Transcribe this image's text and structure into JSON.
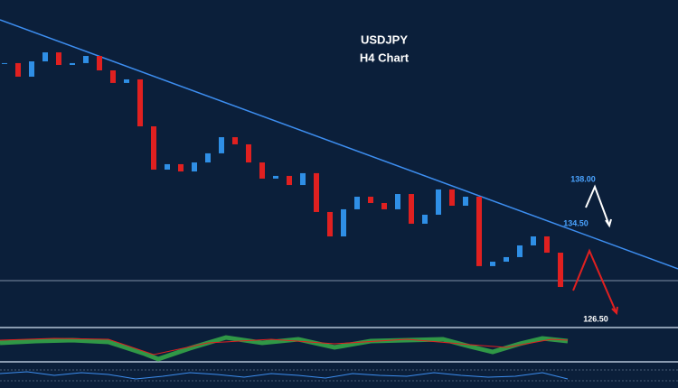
{
  "chart_data": {
    "type": "candlestick",
    "title": "USDJPY",
    "subtitle": "H4 Chart",
    "values": [
      147.38,
      146.28,
      147.52,
      148.25,
      147.23,
      147.38,
      147.96,
      146.79,
      145.77,
      146.06,
      142.25,
      138.74,
      139.18,
      138.59,
      139.32,
      140.06,
      141.37,
      140.79,
      139.32,
      138.01,
      138.23,
      137.49,
      138.45,
      135.3,
      133.32,
      135.52,
      136.54,
      136.03,
      135.52,
      136.76,
      134.35,
      135.08,
      137.13,
      135.81,
      136.54,
      130.91,
      131.27,
      131.64,
      132.59,
      133.32,
      132.0,
      129.22
    ],
    "up_color": "#2f8fe6",
    "down_color": "#e02020",
    "ylim": [
      126,
      152.5
    ],
    "trendline": {
      "values": [
        150.89,
        130.69
      ],
      "color": "#3d8ef0"
    },
    "hline": {
      "value": 129.73,
      "color": "#7f8fa6"
    },
    "annotations": [
      "138.00",
      "134.50",
      "126.50"
    ]
  }
}
